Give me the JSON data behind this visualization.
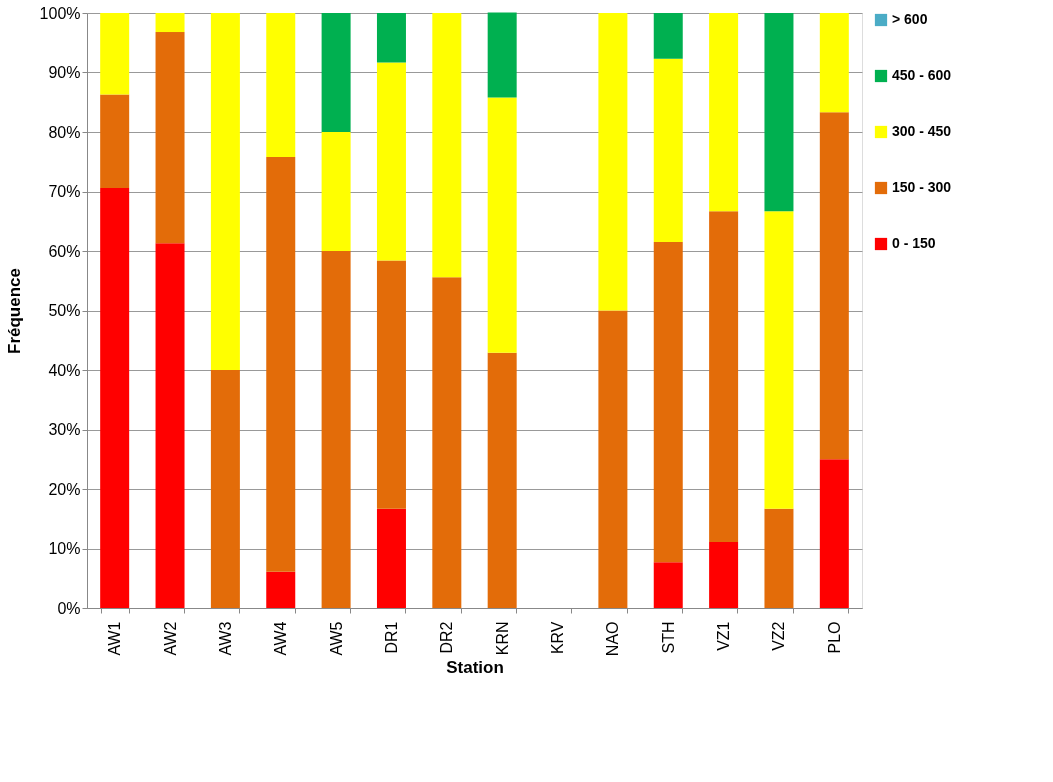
{
  "chart_data": {
    "type": "bar",
    "stacked": true,
    "xlabel": "Station",
    "ylabel": "Fréquence",
    "categories": [
      "AW1",
      "AW2",
      "AW3",
      "AW4",
      "AW5",
      "DR1",
      "DR2",
      "KRN",
      "KRV",
      "NAO",
      "STH",
      "VZ1",
      "VZ2",
      "PLO"
    ],
    "ylim": [
      0,
      100
    ],
    "yticks": [
      {
        "value": 0,
        "label": "0%"
      },
      {
        "value": 10,
        "label": "10%"
      },
      {
        "value": 20,
        "label": "20%"
      },
      {
        "value": 30,
        "label": "30%"
      },
      {
        "value": 40,
        "label": "40%"
      },
      {
        "value": 50,
        "label": "50%"
      },
      {
        "value": 60,
        "label": "60%"
      },
      {
        "value": 70,
        "label": "70%"
      },
      {
        "value": 80,
        "label": "80%"
      },
      {
        "value": 90,
        "label": "90%"
      },
      {
        "value": 100,
        "label": "100%"
      }
    ],
    "grid": "y",
    "legend": "right",
    "series": [
      {
        "name": "0 - 150",
        "color": "#ff0000",
        "values": [
          70.6,
          61.3,
          null,
          6.1,
          null,
          16.7,
          null,
          null,
          null,
          null,
          7.7,
          11.1,
          null,
          25
        ]
      },
      {
        "name": "150 - 300",
        "color": "#e36c09",
        "values": [
          15.7,
          35.5,
          40,
          69.7,
          60,
          41.7,
          55.6,
          42.9,
          null,
          50,
          53.8,
          55.6,
          16.7,
          58.3
        ]
      },
      {
        "name": "300 - 450",
        "color": "#ffff00",
        "values": [
          13.7,
          3.2,
          60,
          24.2,
          20,
          33.3,
          44.4,
          42.9,
          null,
          50,
          30.8,
          33.3,
          50,
          16.7
        ]
      },
      {
        "name": "450 - 600",
        "color": "#00b050",
        "values": [
          null,
          null,
          null,
          null,
          20,
          8.3,
          null,
          14.3,
          null,
          null,
          7.7,
          null,
          33.3,
          null
        ]
      },
      {
        "name": "> 600",
        "color": "#4bacc6",
        "values": [
          null,
          null,
          null,
          null,
          null,
          null,
          null,
          null,
          null,
          null,
          null,
          null,
          null,
          null
        ]
      }
    ]
  }
}
